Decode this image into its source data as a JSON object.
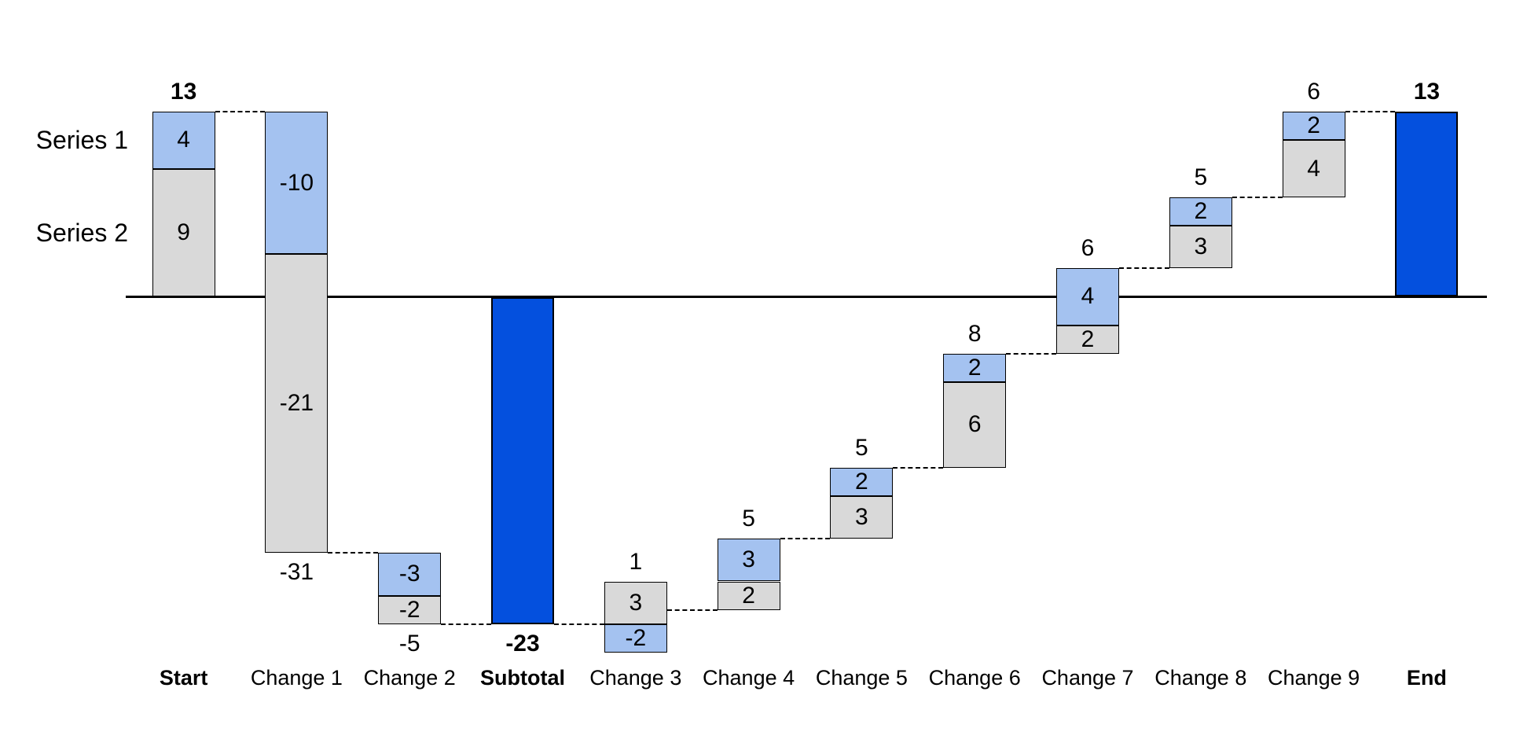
{
  "background": "#FFFFFF",
  "chart_data": {
    "type": "bar",
    "subtype": "stacked-waterfall",
    "title": "",
    "categories": [
      "Start",
      "Change 1",
      "Change 2",
      "Subtotal",
      "Change 3",
      "Change 4",
      "Change 5",
      "Change 6",
      "Change 7",
      "Change 8",
      "Change 9",
      "End"
    ],
    "column_kinds": [
      "start",
      "change",
      "change",
      "subtotal",
      "change",
      "change",
      "change",
      "change",
      "change",
      "change",
      "change",
      "end"
    ],
    "series": [
      {
        "name": "Series 1",
        "color": "#A4C2F0",
        "values": [
          4,
          -10,
          -3,
          null,
          -2,
          3,
          2,
          2,
          4,
          2,
          2,
          null
        ]
      },
      {
        "name": "Series 2",
        "color": "#D9D9D9",
        "values": [
          9,
          -21,
          -2,
          null,
          3,
          2,
          3,
          6,
          2,
          3,
          4,
          null
        ]
      }
    ],
    "totals": [
      13,
      -31,
      -5,
      -23,
      1,
      5,
      5,
      8,
      6,
      5,
      6,
      13
    ],
    "running_totals": [
      13,
      -18,
      -23,
      -23,
      -22,
      -17,
      -12,
      -4,
      2,
      7,
      13,
      13
    ],
    "total_bar_color": "#0450DE",
    "bar_border_color": "#000000",
    "connector_style": "dashed",
    "value_labels_in_segments": true,
    "axis": {
      "zero_line": true,
      "gridlines": false,
      "y_axis_tick_labels": false,
      "ylim_shown": [
        -25,
        13
      ]
    },
    "legend_position": "left-of-first-bar"
  }
}
